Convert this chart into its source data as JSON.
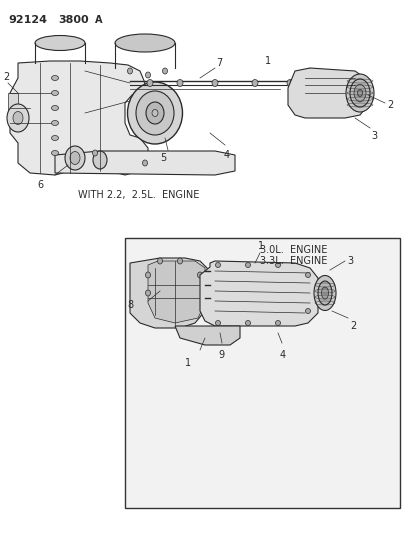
{
  "title": "92124 3800A",
  "bg_color": "#ffffff",
  "diagram_ink": "#2a2a2a",
  "top_caption": "WITH 2.2,  2.5L.  ENGINE",
  "box_caption_line1": "3.0L.  ENGINE",
  "box_caption_line2": "3.3L.  ENGINE",
  "figsize": [
    4.05,
    5.33
  ],
  "dpi": 100
}
